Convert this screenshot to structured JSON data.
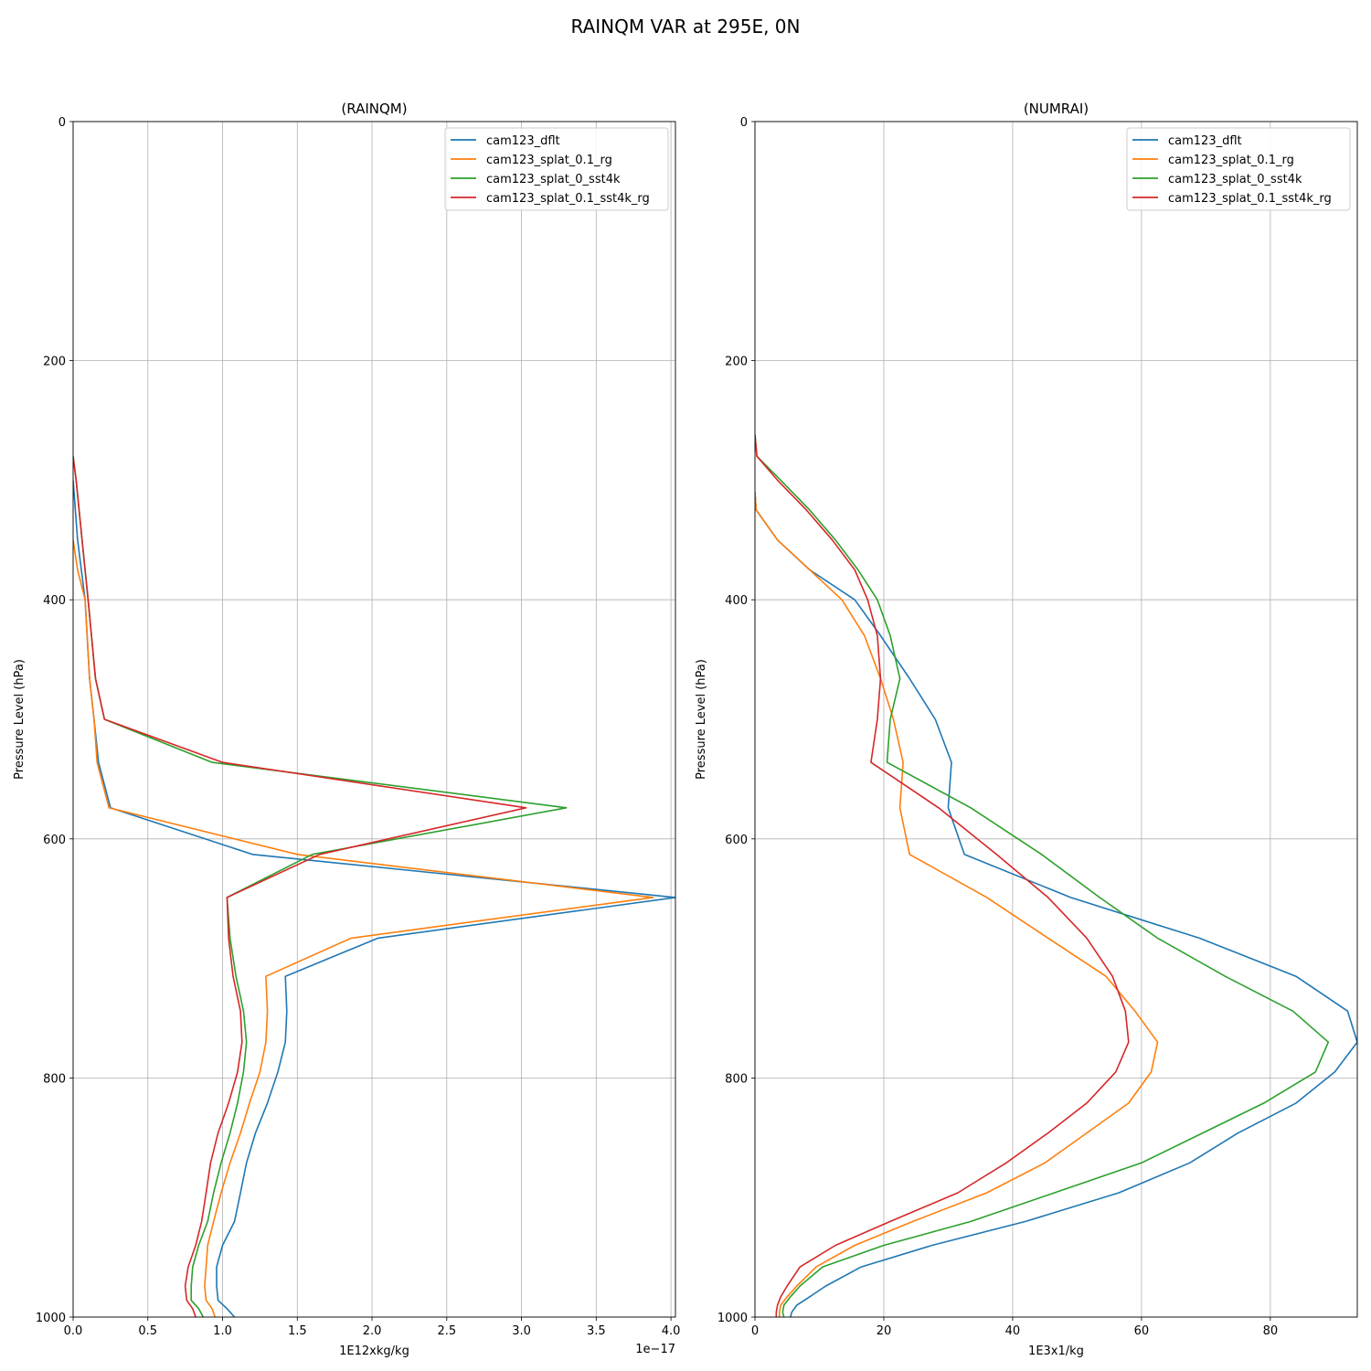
{
  "figure": {
    "title": "RAINQM VAR at 295E, 0N"
  },
  "chart_data": [
    {
      "type": "line",
      "title": "(RAINQM)",
      "xlabel": "1E12xkg/kg",
      "ylabel": "Pressure Level (hPa)",
      "x_offset_text": "1e−17",
      "xlim": [
        0,
        4.03
      ],
      "ylim": [
        1000,
        0
      ],
      "xticks": [
        0,
        0.5,
        1.0,
        1.5,
        2.0,
        2.5,
        3.0,
        3.5,
        4.0
      ],
      "xtick_labels": [
        "0.0",
        "0.5",
        "1.0",
        "1.5",
        "2.0",
        "2.5",
        "3.0",
        "3.5",
        "4.0"
      ],
      "yticks": [
        0,
        200,
        400,
        600,
        800,
        1000
      ],
      "ytick_labels": [
        "0",
        "200",
        "400",
        "600",
        "800",
        "1000"
      ],
      "grid": true,
      "legend_position": "top-right",
      "series": [
        {
          "name": "cam123_dflt",
          "color": "#1f77b4",
          "points": [
            [
              0,
              300
            ],
            [
              0.03,
              350
            ],
            [
              0.08,
              400
            ],
            [
              0.11,
              466
            ],
            [
              0.14,
              500
            ],
            [
              0.17,
              536
            ],
            [
              0.25,
              574
            ],
            [
              1.2,
              613
            ],
            [
              4.03,
              649
            ],
            [
              2.04,
              683
            ],
            [
              1.42,
              715
            ],
            [
              1.43,
              744
            ],
            [
              1.42,
              770
            ],
            [
              1.37,
              795
            ],
            [
              1.3,
              821
            ],
            [
              1.22,
              846
            ],
            [
              1.16,
              871
            ],
            [
              1.12,
              896
            ],
            [
              1.08,
              920
            ],
            [
              1.0,
              940
            ],
            [
              0.96,
              958
            ],
            [
              0.96,
              974
            ],
            [
              0.97,
              986
            ],
            [
              1.03,
              993
            ],
            [
              1.08,
              1000
            ]
          ]
        },
        {
          "name": "cam123_splat_0.1_rg",
          "color": "#ff7f0e",
          "points": [
            [
              0,
              350
            ],
            [
              0.03,
              375
            ],
            [
              0.08,
              400
            ],
            [
              0.11,
              466
            ],
            [
              0.14,
              500
            ],
            [
              0.16,
              536
            ],
            [
              0.24,
              574
            ],
            [
              1.5,
              613
            ],
            [
              3.88,
              649
            ],
            [
              1.86,
              683
            ],
            [
              1.29,
              715
            ],
            [
              1.3,
              744
            ],
            [
              1.29,
              770
            ],
            [
              1.25,
              795
            ],
            [
              1.18,
              821
            ],
            [
              1.12,
              846
            ],
            [
              1.05,
              871
            ],
            [
              0.99,
              896
            ],
            [
              0.94,
              920
            ],
            [
              0.9,
              940
            ],
            [
              0.89,
              958
            ],
            [
              0.88,
              974
            ],
            [
              0.89,
              986
            ],
            [
              0.93,
              993
            ],
            [
              0.95,
              1000
            ]
          ]
        },
        {
          "name": "cam123_splat_0_sst4k",
          "color": "#2ca02c",
          "points": [
            [
              0,
              280
            ],
            [
              0.02,
              300
            ],
            [
              0.06,
              350
            ],
            [
              0.1,
              400
            ],
            [
              0.15,
              466
            ],
            [
              0.21,
              500
            ],
            [
              0.93,
              536
            ],
            [
              3.3,
              574
            ],
            [
              1.6,
              613
            ],
            [
              1.03,
              649
            ],
            [
              1.05,
              683
            ],
            [
              1.09,
              715
            ],
            [
              1.14,
              744
            ],
            [
              1.16,
              770
            ],
            [
              1.14,
              795
            ],
            [
              1.1,
              821
            ],
            [
              1.05,
              846
            ],
            [
              0.99,
              871
            ],
            [
              0.94,
              896
            ],
            [
              0.9,
              920
            ],
            [
              0.84,
              940
            ],
            [
              0.8,
              958
            ],
            [
              0.79,
              974
            ],
            [
              0.79,
              986
            ],
            [
              0.84,
              993
            ],
            [
              0.87,
              1000
            ]
          ]
        },
        {
          "name": "cam123_splat_0.1_sst4k_rg",
          "color": "#d62728",
          "points": [
            [
              0,
              280
            ],
            [
              0.02,
              300
            ],
            [
              0.06,
              350
            ],
            [
              0.1,
              400
            ],
            [
              0.15,
              466
            ],
            [
              0.21,
              500
            ],
            [
              1.0,
              536
            ],
            [
              3.03,
              574
            ],
            [
              1.65,
              613
            ],
            [
              1.03,
              649
            ],
            [
              1.04,
              683
            ],
            [
              1.07,
              715
            ],
            [
              1.12,
              744
            ],
            [
              1.13,
              770
            ],
            [
              1.1,
              795
            ],
            [
              1.04,
              821
            ],
            [
              0.97,
              846
            ],
            [
              0.92,
              871
            ],
            [
              0.89,
              896
            ],
            [
              0.86,
              920
            ],
            [
              0.82,
              940
            ],
            [
              0.77,
              958
            ],
            [
              0.75,
              974
            ],
            [
              0.76,
              986
            ],
            [
              0.8,
              993
            ],
            [
              0.82,
              1000
            ]
          ]
        }
      ]
    },
    {
      "type": "line",
      "title": "(NUMRAI)",
      "xlabel": "1E3x1/kg",
      "ylabel": "Pressure Level (hPa)",
      "xlim": [
        0,
        93.5
      ],
      "ylim": [
        1000,
        0
      ],
      "xticks": [
        0,
        20,
        40,
        60,
        80
      ],
      "xtick_labels": [
        "0",
        "20",
        "40",
        "60",
        "80"
      ],
      "yticks": [
        0,
        200,
        400,
        600,
        800,
        1000
      ],
      "ytick_labels": [
        "0",
        "200",
        "400",
        "600",
        "800",
        "1000"
      ],
      "grid": true,
      "legend_position": "top-right",
      "series": [
        {
          "name": "cam123_dflt",
          "color": "#1f77b4",
          "points": [
            [
              0,
              310
            ],
            [
              0.2,
              325
            ],
            [
              3.5,
              350
            ],
            [
              8.5,
              375
            ],
            [
              15.5,
              400
            ],
            [
              19.5,
              430
            ],
            [
              24,
              466
            ],
            [
              28,
              500
            ],
            [
              30.5,
              536
            ],
            [
              30,
              574
            ],
            [
              32.5,
              613
            ],
            [
              49,
              649
            ],
            [
              69,
              683
            ],
            [
              84,
              715
            ],
            [
              92,
              744
            ],
            [
              93.5,
              770
            ],
            [
              90,
              795
            ],
            [
              84,
              821
            ],
            [
              75,
              846
            ],
            [
              67.5,
              871
            ],
            [
              56.5,
              896
            ],
            [
              42,
              920
            ],
            [
              27.5,
              940
            ],
            [
              16.5,
              958
            ],
            [
              11,
              974
            ],
            [
              8.5,
              983
            ],
            [
              6.5,
              990
            ],
            [
              5.7,
              996
            ],
            [
              5.5,
              1000
            ]
          ]
        },
        {
          "name": "cam123_splat_0.1_rg",
          "color": "#ff7f0e",
          "points": [
            [
              0,
              310
            ],
            [
              0.2,
              325
            ],
            [
              3.5,
              350
            ],
            [
              8.5,
              375
            ],
            [
              13.5,
              400
            ],
            [
              17,
              430
            ],
            [
              19.5,
              466
            ],
            [
              21.5,
              500
            ],
            [
              23,
              536
            ],
            [
              22.5,
              574
            ],
            [
              24,
              613
            ],
            [
              36,
              649
            ],
            [
              45.5,
              683
            ],
            [
              54.5,
              715
            ],
            [
              59,
              744
            ],
            [
              62.5,
              770
            ],
            [
              61.5,
              795
            ],
            [
              58,
              821
            ],
            [
              51.5,
              846
            ],
            [
              45,
              871
            ],
            [
              36,
              896
            ],
            [
              24.5,
              920
            ],
            [
              15.5,
              940
            ],
            [
              9.5,
              958
            ],
            [
              6.5,
              974
            ],
            [
              5,
              983
            ],
            [
              4,
              990
            ],
            [
              3.8,
              996
            ],
            [
              3.8,
              1000
            ]
          ]
        },
        {
          "name": "cam123_splat_0_sst4k",
          "color": "#2ca02c",
          "points": [
            [
              0,
              262
            ],
            [
              0.3,
              280
            ],
            [
              4,
              300
            ],
            [
              8.5,
              325
            ],
            [
              12.5,
              350
            ],
            [
              16,
              375
            ],
            [
              19,
              400
            ],
            [
              21,
              430
            ],
            [
              22.5,
              466
            ],
            [
              21,
              500
            ],
            [
              20.5,
              536
            ],
            [
              33.5,
              574
            ],
            [
              44.5,
              613
            ],
            [
              53.5,
              649
            ],
            [
              62.5,
              683
            ],
            [
              73,
              715
            ],
            [
              83.5,
              744
            ],
            [
              89,
              770
            ],
            [
              87,
              795
            ],
            [
              79,
              821
            ],
            [
              69.5,
              846
            ],
            [
              60,
              871
            ],
            [
              46.5,
              896
            ],
            [
              33.5,
              920
            ],
            [
              20,
              940
            ],
            [
              10.5,
              958
            ],
            [
              7,
              974
            ],
            [
              5.5,
              983
            ],
            [
              4.5,
              990
            ],
            [
              4.3,
              996
            ],
            [
              4.5,
              1000
            ]
          ]
        },
        {
          "name": "cam123_splat_0.1_sst4k_rg",
          "color": "#d62728",
          "points": [
            [
              0,
              262
            ],
            [
              0.3,
              280
            ],
            [
              3.5,
              300
            ],
            [
              8,
              325
            ],
            [
              12,
              350
            ],
            [
              15.5,
              375
            ],
            [
              17.5,
              400
            ],
            [
              19,
              430
            ],
            [
              19.5,
              466
            ],
            [
              19,
              500
            ],
            [
              18,
              536
            ],
            [
              28.5,
              574
            ],
            [
              37.5,
              613
            ],
            [
              45.5,
              649
            ],
            [
              51.5,
              683
            ],
            [
              55.5,
              715
            ],
            [
              57.5,
              744
            ],
            [
              58,
              770
            ],
            [
              56,
              795
            ],
            [
              51.5,
              821
            ],
            [
              45.5,
              846
            ],
            [
              39,
              871
            ],
            [
              31.5,
              896
            ],
            [
              21,
              920
            ],
            [
              12.5,
              940
            ],
            [
              7,
              958
            ],
            [
              5,
              974
            ],
            [
              4,
              983
            ],
            [
              3.5,
              990
            ],
            [
              3.3,
              996
            ],
            [
              3.3,
              1000
            ]
          ]
        }
      ]
    }
  ]
}
